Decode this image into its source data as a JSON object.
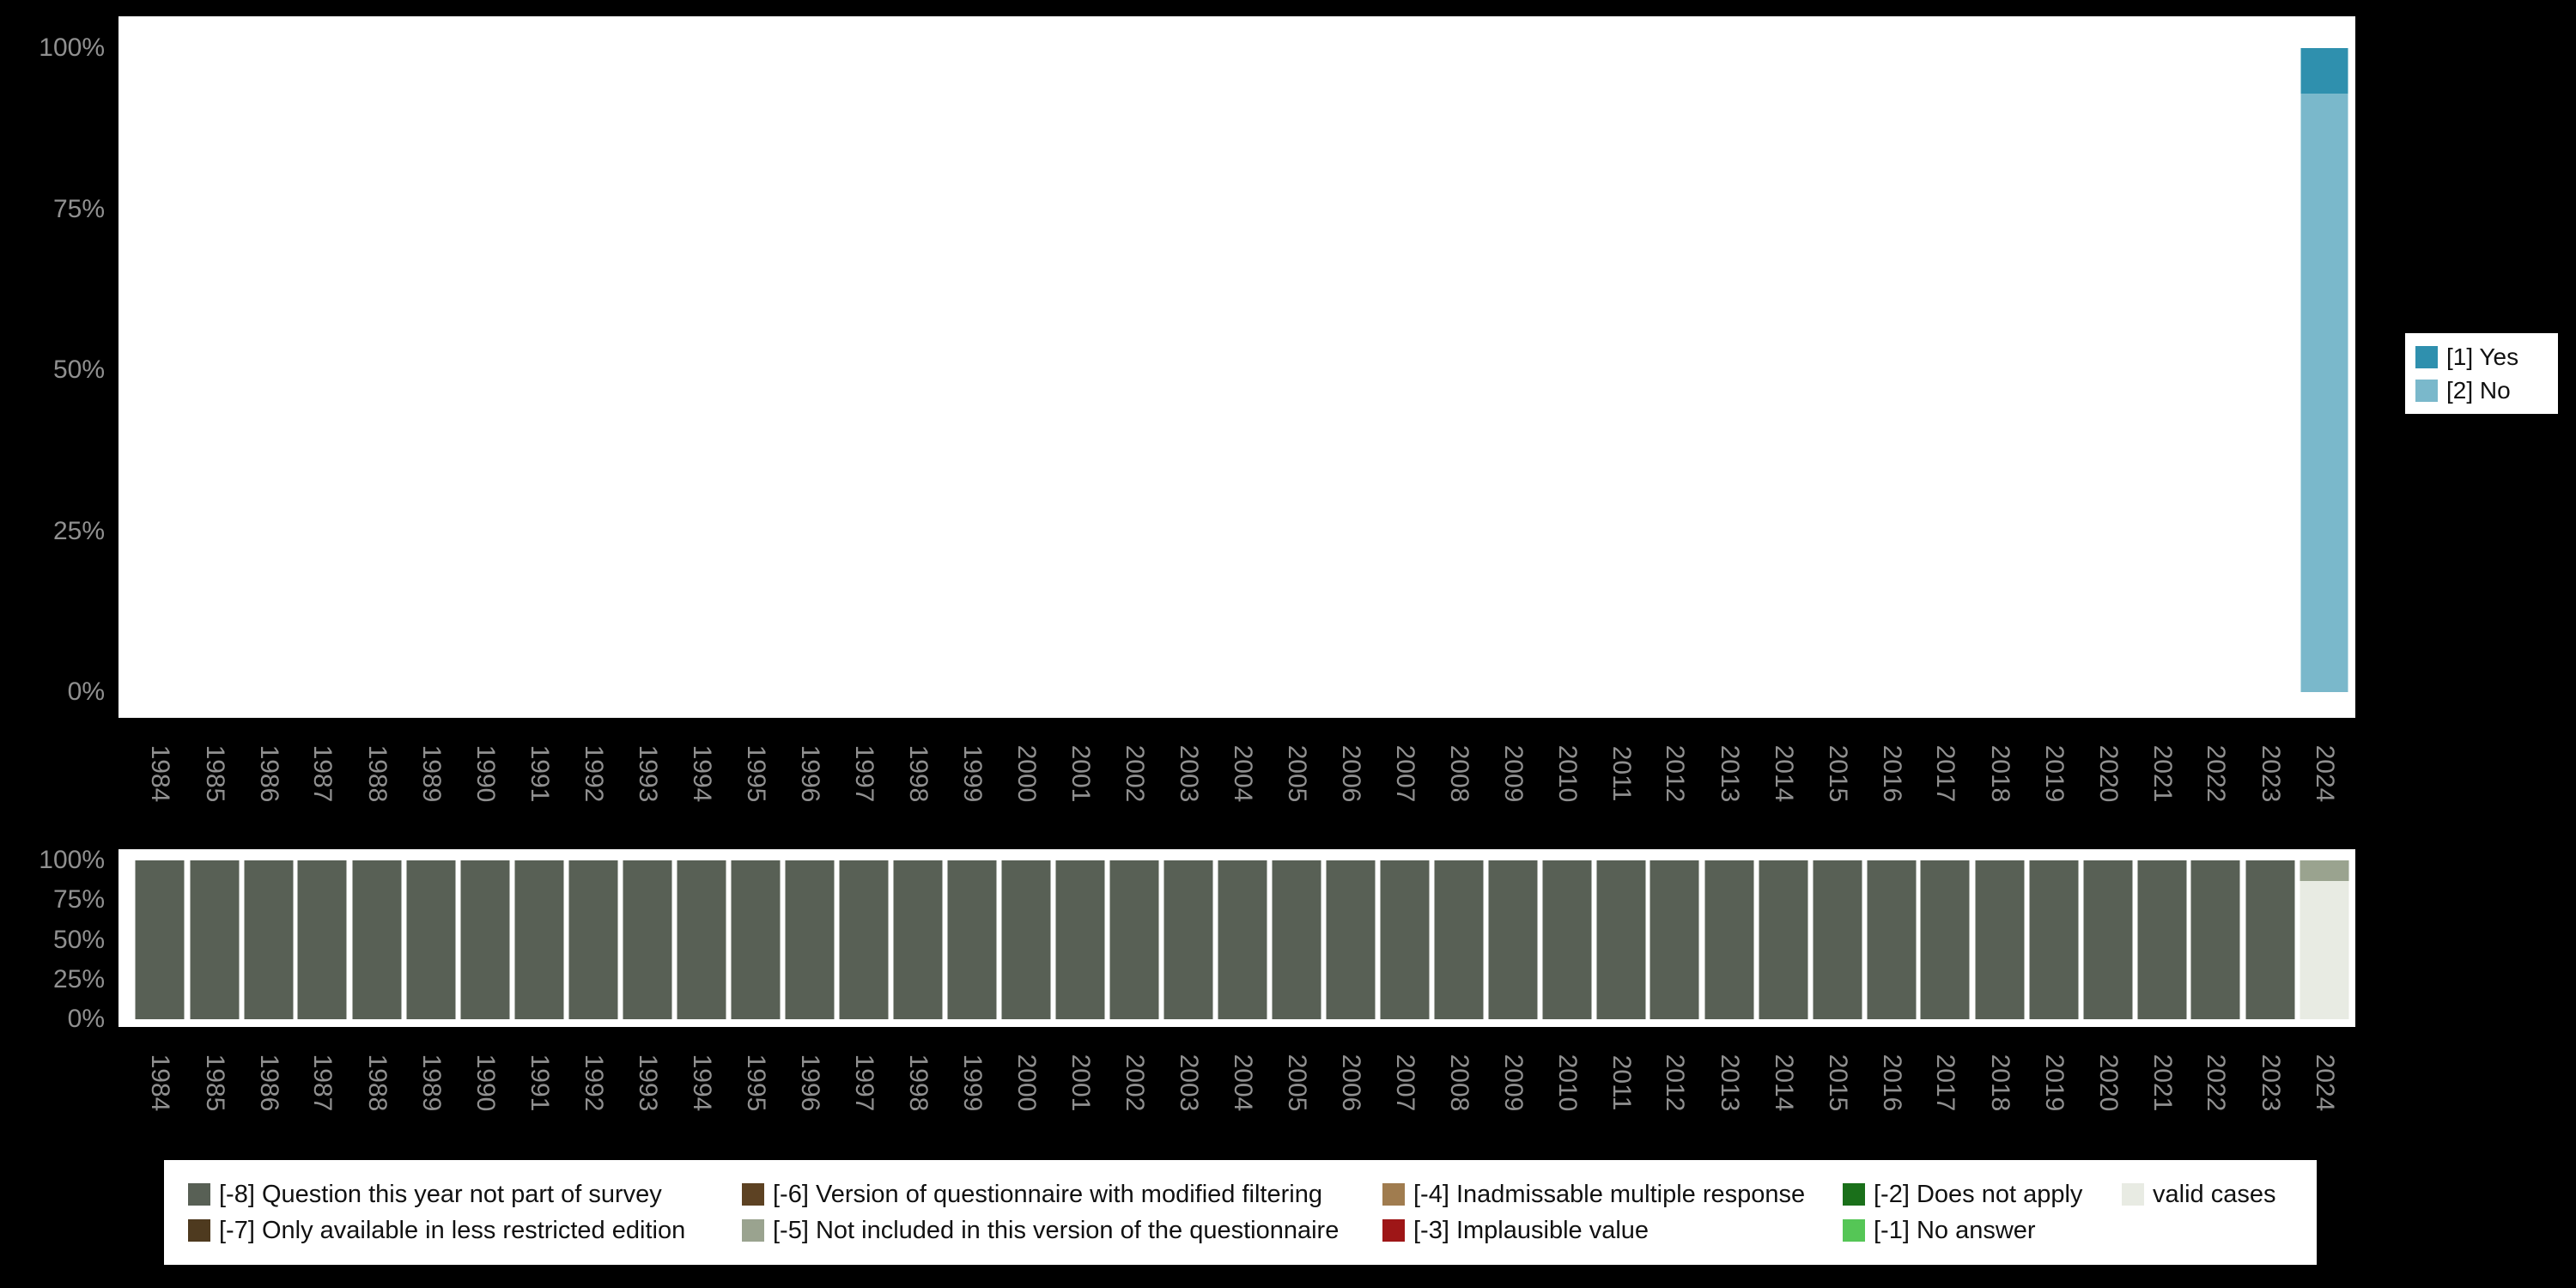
{
  "colors": {
    "background": "#000000",
    "panel": "#ffffff",
    "axis_text": "#909090",
    "yes": "#2f90ae",
    "no": "#7ab8cb",
    "m8": "#586055",
    "m7": "#4e3a1f",
    "m6": "#5d4223",
    "m5": "#9aa38f",
    "m4": "#a07c4f",
    "m3": "#9e1617",
    "m2": "#1a701a",
    "m1": "#55c656",
    "valid": "#e8ebe3"
  },
  "legend_right": {
    "items": [
      {
        "label": "[1] Yes",
        "color_key": "yes"
      },
      {
        "label": "[2] No",
        "color_key": "no"
      }
    ]
  },
  "legend_bottom": {
    "items": [
      {
        "label": "[-8] Question this year not part of survey",
        "color_key": "m8"
      },
      {
        "label": "[-6] Version of questionnaire with modified filtering",
        "color_key": "m6"
      },
      {
        "label": "[-4] Inadmissable multiple response",
        "color_key": "m4"
      },
      {
        "label": "[-2] Does not apply",
        "color_key": "m2"
      },
      {
        "label": "valid cases",
        "color_key": "valid"
      },
      {
        "label": "[-7] Only available in less restricted edition",
        "color_key": "m7"
      },
      {
        "label": "[-5] Not included in this version of the questionnaire",
        "color_key": "m5"
      },
      {
        "label": "[-3] Implausible value",
        "color_key": "m3"
      },
      {
        "label": "[-1] No answer",
        "color_key": "m1"
      }
    ]
  },
  "chart_data": [
    {
      "type": "bar",
      "stacked": true,
      "title": "",
      "xlabel": "",
      "ylabel": "",
      "ylim": [
        0,
        100
      ],
      "yticks": [
        "100%",
        "75%",
        "50%",
        "25%",
        "0%"
      ],
      "unit": "percent",
      "legend_position": "right",
      "grid": false,
      "categories": [
        "1984",
        "1985",
        "1986",
        "1987",
        "1988",
        "1989",
        "1990",
        "1991",
        "1992",
        "1993",
        "1994",
        "1995",
        "1996",
        "1997",
        "1998",
        "1999",
        "2000",
        "2001",
        "2002",
        "2003",
        "2004",
        "2005",
        "2006",
        "2007",
        "2008",
        "2009",
        "2010",
        "2011",
        "2012",
        "2013",
        "2014",
        "2015",
        "2016",
        "2017",
        "2018",
        "2019",
        "2020",
        "2021",
        "2022",
        "2023",
        "2024"
      ],
      "series": [
        {
          "name": "[2] No",
          "color_key": "no",
          "values": [
            0,
            0,
            0,
            0,
            0,
            0,
            0,
            0,
            0,
            0,
            0,
            0,
            0,
            0,
            0,
            0,
            0,
            0,
            0,
            0,
            0,
            0,
            0,
            0,
            0,
            0,
            0,
            0,
            0,
            0,
            0,
            0,
            0,
            0,
            0,
            0,
            0,
            0,
            0,
            0,
            93
          ]
        },
        {
          "name": "[1] Yes",
          "color_key": "yes",
          "values": [
            0,
            0,
            0,
            0,
            0,
            0,
            0,
            0,
            0,
            0,
            0,
            0,
            0,
            0,
            0,
            0,
            0,
            0,
            0,
            0,
            0,
            0,
            0,
            0,
            0,
            0,
            0,
            0,
            0,
            0,
            0,
            0,
            0,
            0,
            0,
            0,
            0,
            0,
            0,
            0,
            7
          ]
        }
      ]
    },
    {
      "type": "bar",
      "stacked": true,
      "title": "",
      "xlabel": "",
      "ylabel": "",
      "ylim": [
        0,
        100
      ],
      "yticks": [
        "100%",
        "75%",
        "50%",
        "25%",
        "0%"
      ],
      "unit": "percent",
      "legend_position": "bottom",
      "grid": false,
      "categories": [
        "1984",
        "1985",
        "1986",
        "1987",
        "1988",
        "1989",
        "1990",
        "1991",
        "1992",
        "1993",
        "1994",
        "1995",
        "1996",
        "1997",
        "1998",
        "1999",
        "2000",
        "2001",
        "2002",
        "2003",
        "2004",
        "2005",
        "2006",
        "2007",
        "2008",
        "2009",
        "2010",
        "2011",
        "2012",
        "2013",
        "2014",
        "2015",
        "2016",
        "2017",
        "2018",
        "2019",
        "2020",
        "2021",
        "2022",
        "2023",
        "2024"
      ],
      "series": [
        {
          "name": "valid cases",
          "color_key": "valid",
          "values": [
            0,
            0,
            0,
            0,
            0,
            0,
            0,
            0,
            0,
            0,
            0,
            0,
            0,
            0,
            0,
            0,
            0,
            0,
            0,
            0,
            0,
            0,
            0,
            0,
            0,
            0,
            0,
            0,
            0,
            0,
            0,
            0,
            0,
            0,
            0,
            0,
            0,
            0,
            0,
            0,
            87
          ]
        },
        {
          "name": "[-5] Not included in this version of the questionnaire",
          "color_key": "m5",
          "values": [
            0,
            0,
            0,
            0,
            0,
            0,
            0,
            0,
            0,
            0,
            0,
            0,
            0,
            0,
            0,
            0,
            0,
            0,
            0,
            0,
            0,
            0,
            0,
            0,
            0,
            0,
            0,
            0,
            0,
            0,
            0,
            0,
            0,
            0,
            0,
            0,
            0,
            0,
            0,
            0,
            13
          ]
        },
        {
          "name": "[-8] Question this year not part of survey",
          "color_key": "m8",
          "values": [
            100,
            100,
            100,
            100,
            100,
            100,
            100,
            100,
            100,
            100,
            100,
            100,
            100,
            100,
            100,
            100,
            100,
            100,
            100,
            100,
            100,
            100,
            100,
            100,
            100,
            100,
            100,
            100,
            100,
            100,
            100,
            100,
            100,
            100,
            100,
            100,
            100,
            100,
            100,
            100,
            0
          ]
        }
      ]
    }
  ]
}
